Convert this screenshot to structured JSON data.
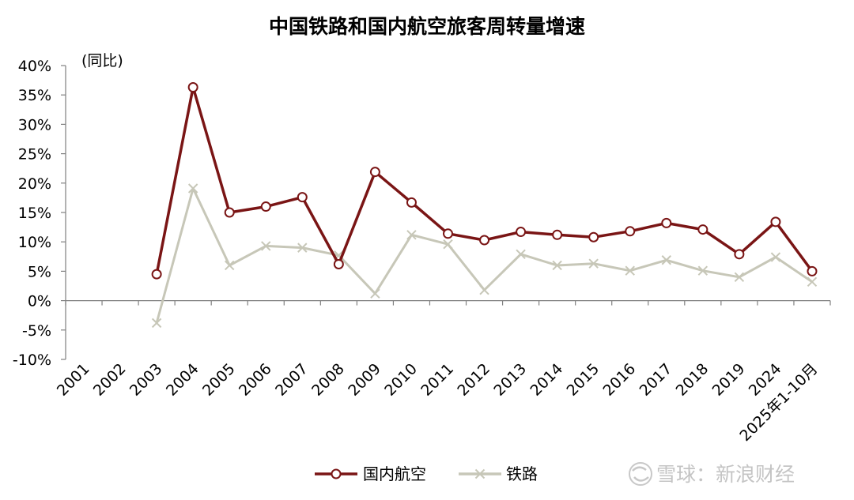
{
  "chart_data": {
    "type": "line",
    "title": "中国铁路和国内航空旅客周转量增速",
    "ylabel": "(同比)",
    "xlabel": "",
    "categories": [
      "2001",
      "2002",
      "2003",
      "2004",
      "2005",
      "2006",
      "2007",
      "2008",
      "2009",
      "2010",
      "2011",
      "2012",
      "2013",
      "2014",
      "2015",
      "2016",
      "2017",
      "2018",
      "2019",
      "2024",
      "2025年1-10月"
    ],
    "yticks": [
      "40%",
      "35%",
      "30%",
      "25%",
      "20%",
      "15%",
      "10%",
      "5%",
      "0%",
      "-5%",
      "-10%"
    ],
    "ylim": [
      -10,
      40
    ],
    "grid": false,
    "legend_position": "bottom",
    "series": [
      {
        "name": "国内航空",
        "color": "#7a1515",
        "marker": "circle",
        "values": [
          null,
          null,
          4.5,
          36.3,
          15.0,
          16.0,
          17.6,
          6.2,
          21.9,
          16.7,
          11.4,
          10.3,
          11.7,
          11.2,
          10.8,
          11.8,
          13.2,
          12.1,
          7.9,
          13.4,
          5.0
        ]
      },
      {
        "name": "铁路",
        "color": "#c7c7b8",
        "marker": "x",
        "values": [
          null,
          null,
          -3.8,
          19.1,
          6.0,
          9.3,
          9.0,
          7.7,
          1.2,
          11.2,
          9.6,
          1.8,
          7.9,
          6.0,
          6.3,
          5.1,
          6.9,
          5.1,
          4.0,
          7.4,
          3.2
        ]
      }
    ]
  },
  "watermark": "雪球：新浪财经"
}
